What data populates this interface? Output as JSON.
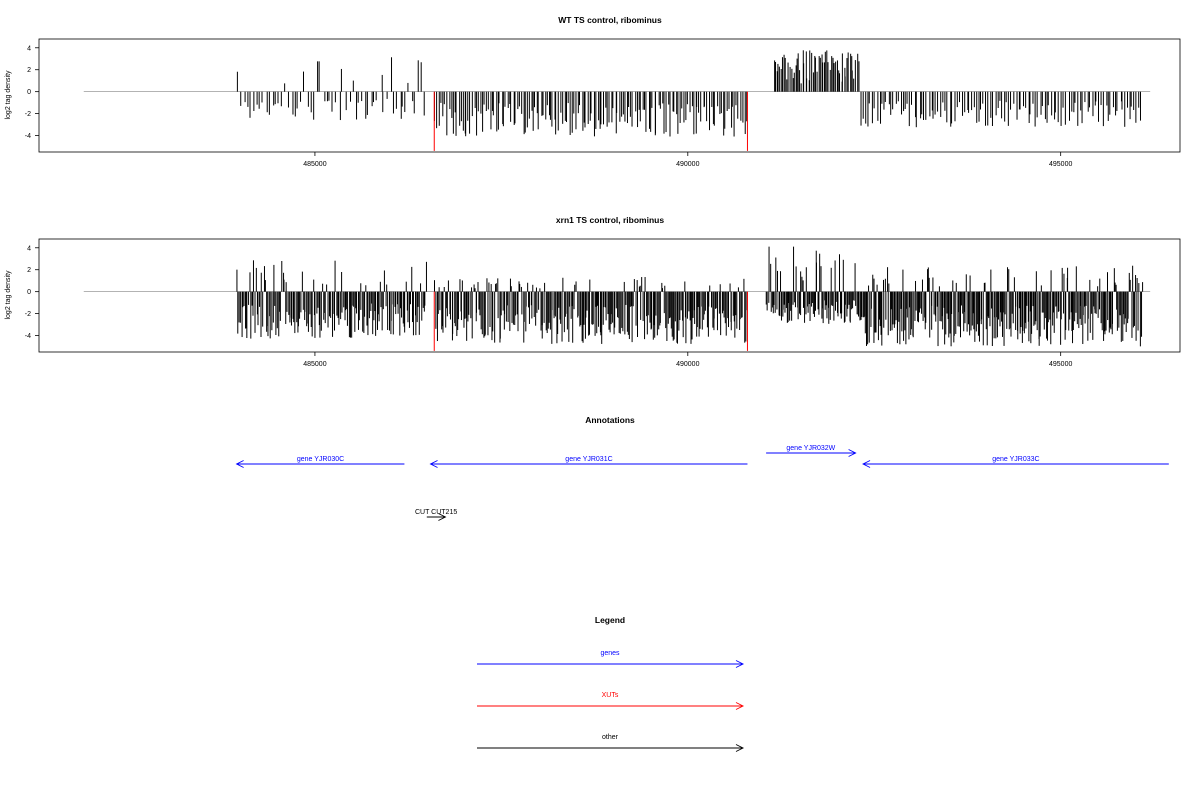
{
  "chart_data": [
    {
      "type": "bar",
      "title": "WT TS control, ribominus",
      "xlabel": "",
      "ylabel": "log2 tag density",
      "xlim": [
        481300,
        496600
      ],
      "ylim": [
        -5.5,
        4.8
      ],
      "xticks": [
        485000,
        490000,
        495000
      ],
      "xtick_labels": [
        "485000",
        "490000",
        "495000"
      ],
      "yticks": [
        4,
        2,
        0,
        -2,
        -4
      ],
      "ytick_labels": [
        "4",
        "2",
        "0",
        "-2",
        "-4"
      ],
      "baseline": {
        "from": 481900,
        "to": 496200
      },
      "grid": false,
      "highlight_color": "#ff0000",
      "bar_color": "#000000",
      "highlights": [
        {
          "x": 486600,
          "value": -5.4
        },
        {
          "x": 490800,
          "value": -5.4
        }
      ],
      "segments": [
        {
          "from": 483950,
          "to": 486500,
          "min": -2.6,
          "max": 3.2,
          "count": 60
        },
        {
          "from": 486600,
          "to": 490800,
          "min": -4.1,
          "max": 0,
          "count": 160
        },
        {
          "from": 491150,
          "to": 492300,
          "min": 0,
          "max": 3.8,
          "count": 60
        },
        {
          "from": 492300,
          "to": 496100,
          "min": -3.3,
          "max": 0,
          "count": 120
        }
      ]
    },
    {
      "type": "bar",
      "title": "xrn1 TS control, ribominus",
      "xlabel": "",
      "ylabel": "log2 tag density",
      "xlim": [
        481300,
        496600
      ],
      "ylim": [
        -5.5,
        4.8
      ],
      "xticks": [
        485000,
        490000,
        495000
      ],
      "xtick_labels": [
        "485000",
        "490000",
        "495000"
      ],
      "yticks": [
        4,
        2,
        0,
        -2,
        -4
      ],
      "ytick_labels": [
        "4",
        "2",
        "0",
        "-2",
        "-4"
      ],
      "baseline": {
        "from": 481900,
        "to": 496200
      },
      "grid": false,
      "highlight_color": "#ff0000",
      "bar_color": "#000000",
      "highlights": [
        {
          "x": 486600,
          "value": -5.4
        },
        {
          "x": 490800,
          "value": -5.4
        }
      ],
      "segments": [
        {
          "from": 483950,
          "to": 486500,
          "min": -4.3,
          "max": 2.9,
          "count": 170
        },
        {
          "from": 486600,
          "to": 490800,
          "min": -4.8,
          "max": 1.4,
          "count": 290
        },
        {
          "from": 491050,
          "to": 492300,
          "min": -3.0,
          "max": 4.3,
          "count": 100
        },
        {
          "from": 492300,
          "to": 496100,
          "min": -5.0,
          "max": 2.4,
          "count": 290
        }
      ]
    }
  ],
  "annotations": {
    "title": "Annotations",
    "features": [
      {
        "label": "gene YJR030C",
        "start": 483950,
        "end": 486200,
        "strand": "-",
        "color": "#0000ff",
        "row": 1
      },
      {
        "label": "gene YJR031C",
        "start": 486550,
        "end": 490800,
        "strand": "-",
        "color": "#0000ff",
        "row": 1
      },
      {
        "label": "gene YJR032W",
        "start": 491050,
        "end": 492250,
        "strand": "+",
        "color": "#0000ff",
        "row": 0
      },
      {
        "label": "gene YJR033C",
        "start": 492350,
        "end": 496450,
        "strand": "-",
        "color": "#0000ff",
        "row": 1
      },
      {
        "label": "CUT CUT215",
        "start": 486500,
        "end": 486750,
        "strand": "+",
        "color": "#000000",
        "row": 2
      }
    ]
  },
  "legend": {
    "title": "Legend",
    "items": [
      {
        "label": "genes",
        "color": "#0000ff"
      },
      {
        "label": "XUTs",
        "color": "#ff0000"
      },
      {
        "label": "other",
        "color": "#000000"
      }
    ]
  }
}
